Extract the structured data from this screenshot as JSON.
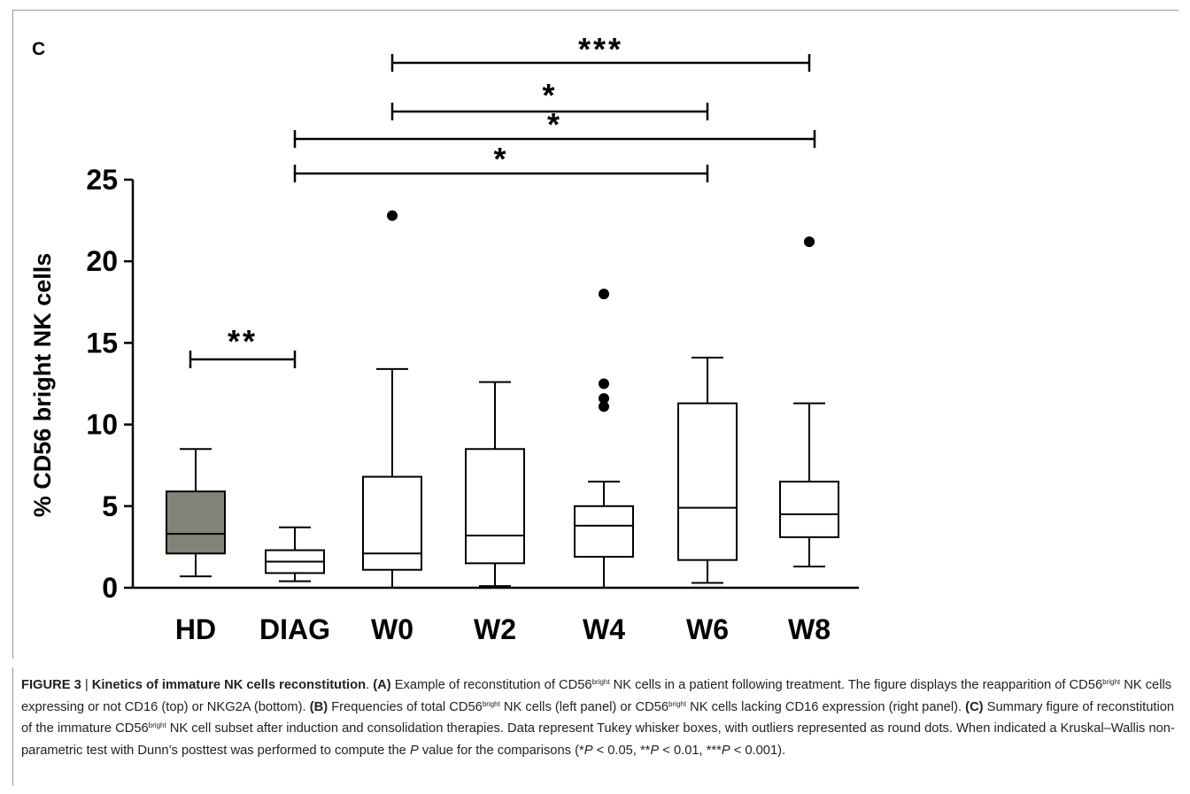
{
  "panel_label": "C",
  "chart_data": {
    "type": "box",
    "title": "",
    "xlabel": "",
    "ylabel": "% CD56 bright NK cells",
    "ylim": [
      0,
      25
    ],
    "yticks": [
      0,
      5,
      10,
      15,
      20,
      25
    ],
    "categories": [
      "HD",
      "DIAG",
      "W0",
      "W2",
      "W4",
      "W6",
      "W8"
    ],
    "boxes": [
      {
        "group": "HD",
        "whisker_low": 0.7,
        "q1": 2.1,
        "median": 3.3,
        "q3": 5.9,
        "whisker_high": 8.5,
        "outliers": [],
        "fill": "#808578"
      },
      {
        "group": "DIAG",
        "whisker_low": 0.4,
        "q1": 0.9,
        "median": 1.6,
        "q3": 2.3,
        "whisker_high": 3.7,
        "outliers": [],
        "fill": "#ffffff"
      },
      {
        "group": "W0",
        "whisker_low": 0.0,
        "q1": 1.1,
        "median": 2.1,
        "q3": 6.8,
        "whisker_high": 13.4,
        "outliers": [
          22.8
        ],
        "fill": "#ffffff"
      },
      {
        "group": "W2",
        "whisker_low": 0.1,
        "q1": 1.5,
        "median": 3.2,
        "q3": 8.5,
        "whisker_high": 12.6,
        "outliers": [],
        "fill": "#ffffff"
      },
      {
        "group": "W4",
        "whisker_low": 0.0,
        "q1": 1.9,
        "median": 3.8,
        "q3": 5.0,
        "whisker_high": 6.5,
        "outliers": [
          11.1,
          11.6,
          12.5,
          18.0
        ],
        "fill": "#ffffff"
      },
      {
        "group": "W6",
        "whisker_low": 0.3,
        "q1": 1.7,
        "median": 4.9,
        "q3": 11.3,
        "whisker_high": 14.1,
        "outliers": [],
        "fill": "#ffffff"
      },
      {
        "group": "W8",
        "whisker_low": 1.3,
        "q1": 3.1,
        "median": 4.5,
        "q3": 6.5,
        "whisker_high": 11.3,
        "outliers": [
          21.2
        ],
        "fill": "#ffffff"
      }
    ],
    "significance": [
      {
        "from": "HD",
        "to": "DIAG",
        "label": "**"
      },
      {
        "from": "DIAG",
        "to": "W6",
        "label": "*"
      },
      {
        "from": "DIAG",
        "to": "W8",
        "label": "*"
      },
      {
        "from": "W0",
        "to": "W6",
        "label": "*"
      },
      {
        "from": "W0",
        "to": "W8",
        "label": "***"
      }
    ]
  },
  "caption": {
    "figure_label": "FIGURE 3",
    "separator": " | ",
    "title": "Kinetics of immature NK cells reconstitution",
    "period": ". ",
    "A_label": "(A)",
    "A_text_1": " Example of reconstitution of CD56",
    "bright": "bright",
    "A_text_2": " NK cells in a patient following treatment. The figure displays the reapparition of CD56",
    "A_text_3": " NK cells expressing or not CD16 (top) or NKG2A (bottom). ",
    "B_label": "(B)",
    "B_text_1": " Frequencies of total CD56",
    "B_text_2": " NK cells (left panel) or CD56",
    "B_text_3": " NK cells lacking CD16 expression (right panel). ",
    "C_label": "(C)",
    "C_text_1": " Summary figure of reconstitution of the immature CD56",
    "C_text_2": " NK cell subset after induction and consolidation therapies. Data represent Tukey whisker boxes, with outliers represented as round dots. When indicated a Kruskal–Wallis non-parametric test with Dunn’s posttest was performed to compute the ",
    "P": "P",
    "C_text_3": " value for the comparisons (*",
    "C_text_4": " < 0.05, **",
    "C_text_5": " < 0.01, ***",
    "C_text_6": " < 0.001)."
  }
}
